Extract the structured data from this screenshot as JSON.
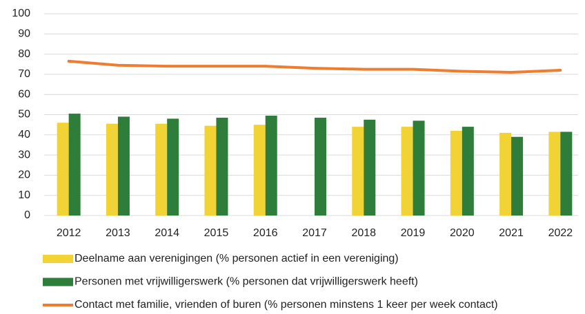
{
  "chart_data": {
    "type": "bar",
    "categories": [
      "2012",
      "2013",
      "2014",
      "2015",
      "2016",
      "2017",
      "2018",
      "2019",
      "2020",
      "2021",
      "2022"
    ],
    "series": [
      {
        "name": "Deelname aan verenigingen (% personen actief in een vereniging)",
        "type": "bar",
        "color": "#f2d335",
        "values": [
          46,
          45.5,
          45.5,
          44.5,
          45,
          null,
          44,
          44,
          42,
          41,
          41.5
        ]
      },
      {
        "name": "Personen met vrijwilligerswerk (% personen dat vrijwilligerswerk heeft)",
        "type": "bar",
        "color": "#2e7d3a",
        "values": [
          50.5,
          49,
          48,
          48.5,
          49.5,
          48.5,
          47.5,
          47,
          44,
          39,
          41.5
        ]
      },
      {
        "name": "Contact met familie, vrienden of buren  (% personen minstens 1 keer per week contact)",
        "type": "line",
        "color": "#ee7d31",
        "values": [
          76.5,
          74.5,
          74,
          74,
          74,
          73,
          72.5,
          72.5,
          71.5,
          71,
          72
        ]
      }
    ],
    "ylim": [
      0,
      100
    ],
    "yticks": [
      0,
      10,
      20,
      30,
      40,
      50,
      60,
      70,
      80,
      90,
      100
    ],
    "grid": true,
    "legend": "bottom"
  }
}
